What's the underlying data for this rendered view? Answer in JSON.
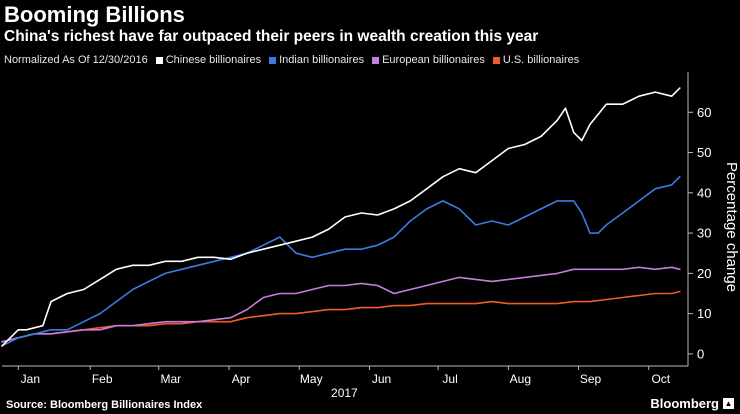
{
  "header": {
    "title": "Booming Billions",
    "subtitle": "China's richest have far outpaced their peers in wealth creation this year"
  },
  "legend": {
    "note": "Normalized As Of 12/30/2016"
  },
  "footer": {
    "source": "Source: Bloomberg Billionaires Index",
    "brand": "Bloomberg",
    "brand_icon": "bloomberg-logo-icon"
  },
  "colors": {
    "background": "#000000",
    "chinese": "#ffffff",
    "indian": "#3d7ae0",
    "european": "#c77ddb",
    "us": "#f15a29",
    "axis": "#bbbbbb"
  },
  "chart_data": {
    "type": "line",
    "title": "Booming Billions",
    "subtitle": "China's richest have far outpaced their peers in wealth creation this year",
    "xlabel": "2017",
    "ylabel": "Percentage change",
    "ylim": [
      -3,
      70
    ],
    "y_ticks": [
      0,
      10,
      20,
      30,
      40,
      50,
      60
    ],
    "x_ticks": [
      "Jan",
      "Feb",
      "Mar",
      "Apr",
      "May",
      "Jun",
      "Jul",
      "Aug",
      "Sep",
      "Oct"
    ],
    "x_year_label": "2017",
    "x_domain": [
      0,
      42
    ],
    "x_tick_positions": [
      1,
      5.4,
      9.6,
      13.9,
      18.2,
      22.5,
      26.7,
      31,
      35.3,
      39.6
    ],
    "legend_position": "top-left",
    "grid": false,
    "series": [
      {
        "name": "Chinese billionaires",
        "color": "#ffffff",
        "x": [
          0,
          0.5,
          1,
          1.5,
          2,
          2.5,
          3,
          3.5,
          4,
          5,
          6,
          7,
          8,
          9,
          10,
          11,
          12,
          13,
          14,
          15,
          16,
          17,
          18,
          19,
          20,
          21,
          22,
          23,
          24,
          25,
          26,
          27,
          28,
          29,
          30,
          31,
          32,
          33,
          34,
          34.5,
          35,
          35.5,
          36,
          37,
          38,
          39,
          40,
          41,
          41.5
        ],
        "values": [
          2,
          4,
          6,
          6,
          6.5,
          7,
          13,
          14,
          15,
          16,
          18.5,
          21,
          22,
          22,
          23,
          23,
          24,
          24,
          23.5,
          25,
          26,
          27,
          28,
          29,
          31,
          34,
          35,
          34.5,
          36,
          38,
          41,
          44,
          46,
          45,
          48,
          51,
          52,
          54,
          58,
          61,
          55,
          53,
          57,
          62,
          62,
          64,
          65,
          64,
          66
        ]
      },
      {
        "name": "Indian billionaires",
        "color": "#3d7ae0",
        "x": [
          0,
          1,
          2,
          3,
          4,
          5,
          6,
          7,
          8,
          9,
          10,
          11,
          12,
          13,
          14,
          15,
          16,
          17,
          18,
          19,
          20,
          21,
          22,
          23,
          24,
          25,
          26,
          27,
          28,
          29,
          30,
          31,
          32,
          33,
          34,
          35,
          35.5,
          36,
          36.5,
          37,
          38,
          39,
          40,
          41,
          41.5
        ],
        "values": [
          2,
          4,
          5,
          6,
          6,
          8,
          10,
          13,
          16,
          18,
          20,
          21,
          22,
          23,
          24,
          25,
          27,
          29,
          25,
          24,
          25,
          26,
          26,
          27,
          29,
          33,
          36,
          38,
          36,
          32,
          33,
          32,
          34,
          36,
          38,
          38,
          35,
          30,
          30,
          32,
          35,
          38,
          41,
          42,
          44
        ]
      },
      {
        "name": "European billionaires",
        "color": "#c77ddb",
        "x": [
          0,
          1,
          2,
          3,
          4,
          5,
          6,
          7,
          8,
          9,
          10,
          11,
          12,
          13,
          14,
          15,
          16,
          17,
          18,
          19,
          20,
          21,
          22,
          23,
          24,
          25,
          26,
          27,
          28,
          29,
          30,
          31,
          32,
          33,
          34,
          35,
          36,
          37,
          38,
          39,
          40,
          41,
          41.5
        ],
        "values": [
          3,
          4,
          5,
          5,
          5.5,
          6,
          6,
          7,
          7,
          7.5,
          8,
          8,
          8,
          8.5,
          9,
          11,
          14,
          15,
          15,
          16,
          17,
          17,
          17.5,
          17,
          15,
          16,
          17,
          18,
          19,
          18.5,
          18,
          18.5,
          19,
          19.5,
          20,
          21,
          21,
          21,
          21,
          21.5,
          21,
          21.5,
          21
        ]
      },
      {
        "name": "U.S. billionaires",
        "color": "#f15a29",
        "x": [
          0,
          1,
          2,
          3,
          4,
          5,
          6,
          7,
          8,
          9,
          10,
          11,
          12,
          13,
          14,
          15,
          16,
          17,
          18,
          19,
          20,
          21,
          22,
          23,
          24,
          25,
          26,
          27,
          28,
          29,
          30,
          31,
          32,
          33,
          34,
          35,
          36,
          37,
          38,
          39,
          40,
          41,
          41.5
        ],
        "values": [
          3,
          4,
          5,
          5,
          5.5,
          6,
          6.5,
          7,
          7,
          7,
          7.5,
          7.5,
          8,
          8,
          8,
          9,
          9.5,
          10,
          10,
          10.5,
          11,
          11,
          11.5,
          11.5,
          12,
          12,
          12.5,
          12.5,
          12.5,
          12.5,
          13,
          12.5,
          12.5,
          12.5,
          12.5,
          13,
          13,
          13.5,
          14,
          14.5,
          15,
          15,
          15.5
        ]
      }
    ]
  }
}
